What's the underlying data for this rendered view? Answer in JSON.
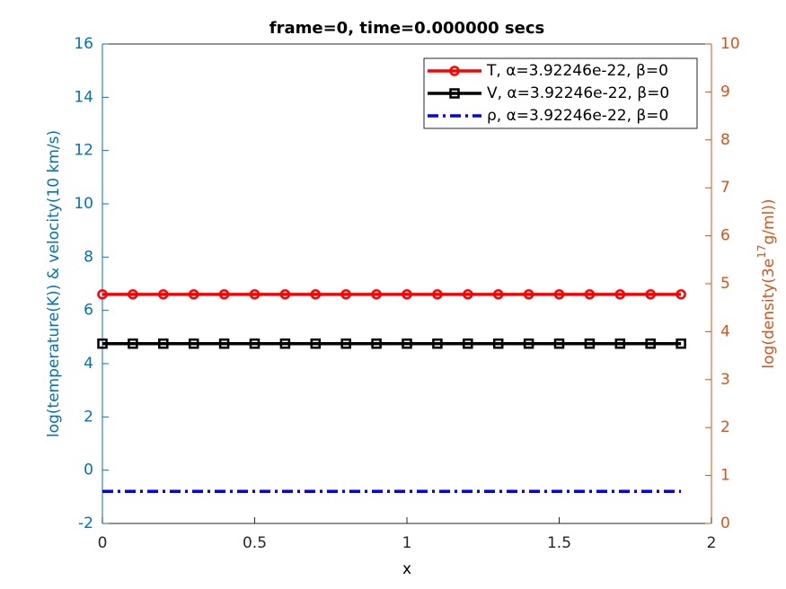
{
  "chart_data": {
    "type": "line",
    "title": "frame=0, time=0.000000 secs",
    "xlabel": "x",
    "ylabel": "log(temperature(K)) & velocity(10 km/s)",
    "y2label": {
      "before": "log(density(3e",
      "sup": "17",
      "after": "g/ml))"
    },
    "x": [
      0,
      0.1,
      0.2,
      0.3,
      0.4,
      0.5,
      0.6,
      0.7,
      0.8,
      0.9,
      1,
      1.1,
      1.2,
      1.3,
      1.4,
      1.5,
      1.6,
      1.7,
      1.8,
      1.9
    ],
    "xlim": [
      0,
      2
    ],
    "xticks": [
      0,
      0.5,
      1,
      1.5,
      2
    ],
    "ylim": [
      -2,
      16
    ],
    "yticks": [
      -2,
      0,
      2,
      4,
      6,
      8,
      10,
      12,
      14,
      16
    ],
    "y2lim": [
      0,
      10
    ],
    "y2ticks": [
      0,
      1,
      2,
      3,
      4,
      5,
      6,
      7,
      8,
      9,
      10
    ],
    "y_axis_color": "#0072bd",
    "y2_axis_color": "#d95319",
    "legend": "upper right",
    "series": [
      {
        "name": "T, α=3.92246e-22, β=0",
        "color": "#ff0000",
        "marker": "circle",
        "dash": "solid",
        "values": [
          6.6,
          6.6,
          6.6,
          6.6,
          6.6,
          6.6,
          6.6,
          6.6,
          6.6,
          6.6,
          6.6,
          6.6,
          6.6,
          6.6,
          6.6,
          6.6,
          6.6,
          6.6,
          6.6,
          6.6
        ]
      },
      {
        "name": "V, α=3.92246e-22, β=0",
        "color": "#000000",
        "marker": "square",
        "dash": "solid",
        "values": [
          4.75,
          4.75,
          4.75,
          4.75,
          4.75,
          4.75,
          4.75,
          4.75,
          4.75,
          4.75,
          4.75,
          4.75,
          4.75,
          4.75,
          4.75,
          4.75,
          4.75,
          4.75,
          4.75,
          4.75
        ]
      },
      {
        "name": "ρ, α=3.92246e-22, β=0",
        "color": "#0000ff",
        "marker": "none",
        "dash": "dashdot",
        "axis": "y2",
        "values": [
          0.67,
          0.67,
          0.67,
          0.67,
          0.67,
          0.67,
          0.67,
          0.67,
          0.67,
          0.67,
          0.67,
          0.67,
          0.67,
          0.67,
          0.67,
          0.67,
          0.67,
          0.67,
          0.67,
          0.67
        ]
      }
    ]
  }
}
